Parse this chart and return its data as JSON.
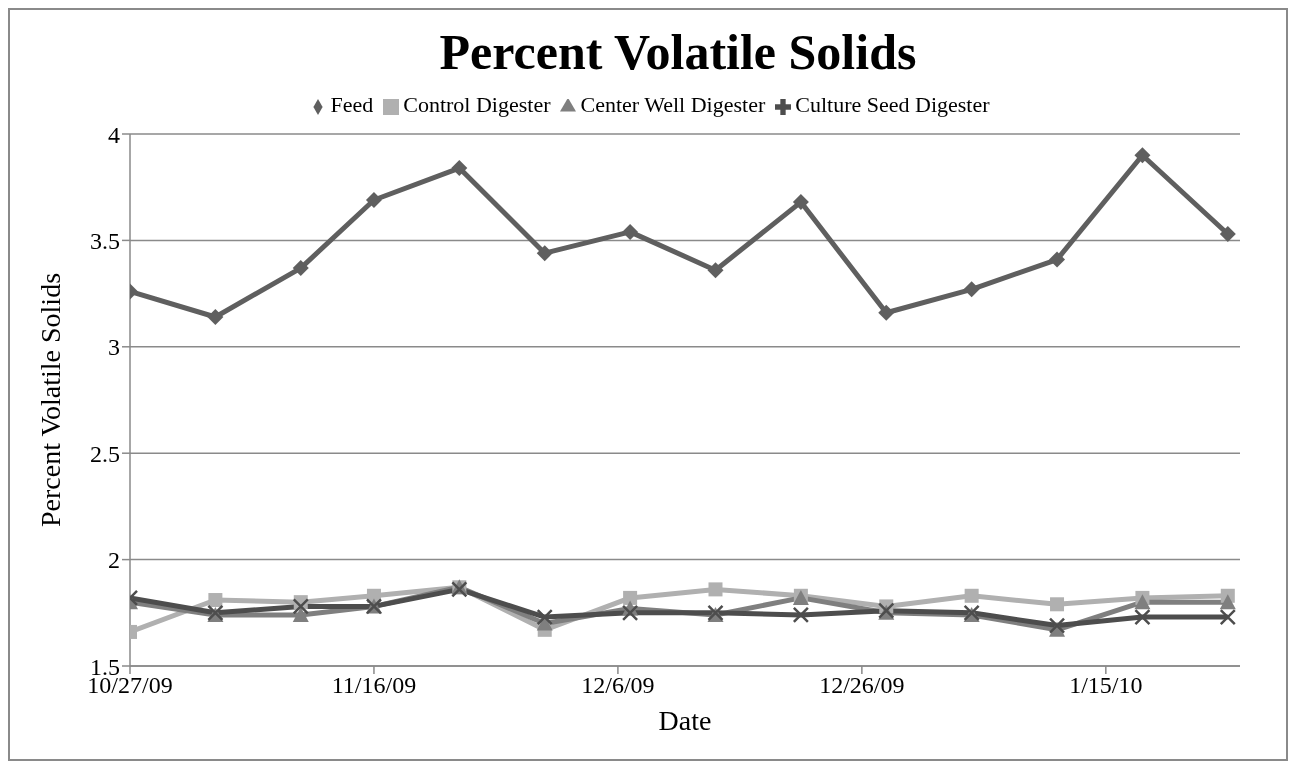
{
  "chart_data": {
    "type": "line",
    "title": "Percent Volatile Solids",
    "xlabel": "Date",
    "ylabel": "Percent Volatile Solids",
    "x": [
      "2009-10-27",
      "2009-11-03",
      "2009-11-10",
      "2009-11-16",
      "2009-11-23",
      "2009-11-30",
      "2009-12-07",
      "2009-12-14",
      "2009-12-21",
      "2009-12-28",
      "2010-01-04",
      "2010-01-11",
      "2010-01-18",
      "2010-01-25"
    ],
    "series": [
      {
        "name": "Feed",
        "color": "#5f5f5f",
        "marker": "diamond",
        "values": [
          3.26,
          3.14,
          3.37,
          3.69,
          3.84,
          3.44,
          3.54,
          3.36,
          3.68,
          3.16,
          3.27,
          3.41,
          3.9,
          3.53
        ]
      },
      {
        "name": "Control Digester",
        "color": "#b0b0b0",
        "marker": "square",
        "values": [
          1.66,
          1.81,
          1.8,
          1.83,
          1.87,
          1.67,
          1.82,
          1.86,
          1.83,
          1.78,
          1.83,
          1.79,
          1.82,
          1.83
        ]
      },
      {
        "name": "Center Well Digester",
        "color": "#7f7f7f",
        "marker": "triangle",
        "values": [
          1.8,
          1.74,
          1.74,
          1.78,
          1.87,
          1.7,
          1.77,
          1.74,
          1.82,
          1.75,
          1.74,
          1.67,
          1.8,
          1.8
        ]
      },
      {
        "name": "Culture Seed Digester",
        "color": "#4d4d4d",
        "marker": "cross",
        "values": [
          1.82,
          1.75,
          1.78,
          1.78,
          1.86,
          1.73,
          1.75,
          1.75,
          1.74,
          1.76,
          1.75,
          1.69,
          1.73,
          1.73
        ]
      }
    ],
    "xlim": [
      "2009-10-27",
      "2010-01-26"
    ],
    "xticks": [
      {
        "value": "2009-10-27",
        "label": "10/27/09"
      },
      {
        "value": "2009-11-16",
        "label": "11/16/09"
      },
      {
        "value": "2009-12-06",
        "label": "12/6/09"
      },
      {
        "value": "2009-12-26",
        "label": "12/26/09"
      },
      {
        "value": "2010-01-15",
        "label": "1/15/10"
      }
    ],
    "ylim": [
      1.5,
      4
    ],
    "yticks": [
      1.5,
      2,
      2.5,
      3,
      3.5,
      4
    ],
    "grid": "y",
    "legend": "top",
    "line_style": "solid"
  }
}
